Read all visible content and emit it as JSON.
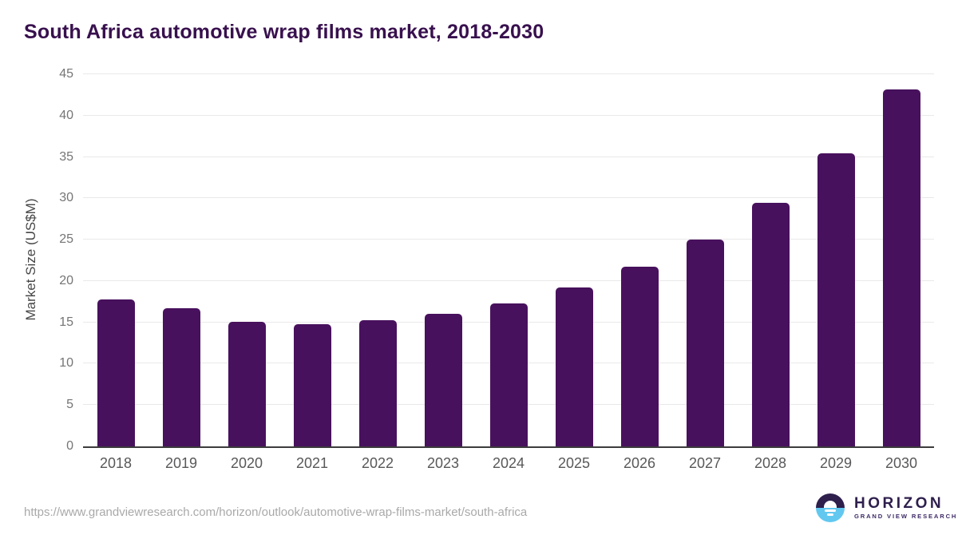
{
  "page": {
    "title": "South Africa automotive wrap films market, 2018-2030",
    "source_url": "https://www.grandviewresearch.com/horizon/outlook/automotive-wrap-films-market/south-africa"
  },
  "logo": {
    "name": "HORIZON",
    "subtitle": "GRAND VIEW RESEARCH"
  },
  "colors": {
    "bar": "#48115d",
    "title": "#38104e",
    "tick": "#757575",
    "xtick": "#58585a",
    "axis_label": "#474747",
    "gridline": "#e9e9e9",
    "axis_line": "#3c3c3c",
    "url": "#a9a9a9",
    "logo_dark": "#2e1f4d",
    "logo_blue": "#62c8f0"
  },
  "chart_data": {
    "type": "bar",
    "title": "South Africa automotive wrap films market, 2018-2030",
    "categories": [
      "2018",
      "2019",
      "2020",
      "2021",
      "2022",
      "2023",
      "2024",
      "2025",
      "2026",
      "2027",
      "2028",
      "2029",
      "2030"
    ],
    "values": [
      17.8,
      16.7,
      15.1,
      14.8,
      15.3,
      16.0,
      17.3,
      19.2,
      21.7,
      25.0,
      29.5,
      35.4,
      43.2
    ],
    "xlabel": "",
    "ylabel": "Market Size (US$M)",
    "ylim": [
      0,
      45
    ],
    "yticks": [
      0,
      5,
      10,
      15,
      20,
      25,
      30,
      35,
      40,
      45
    ],
    "grid": "horizontal",
    "legend": "none"
  }
}
